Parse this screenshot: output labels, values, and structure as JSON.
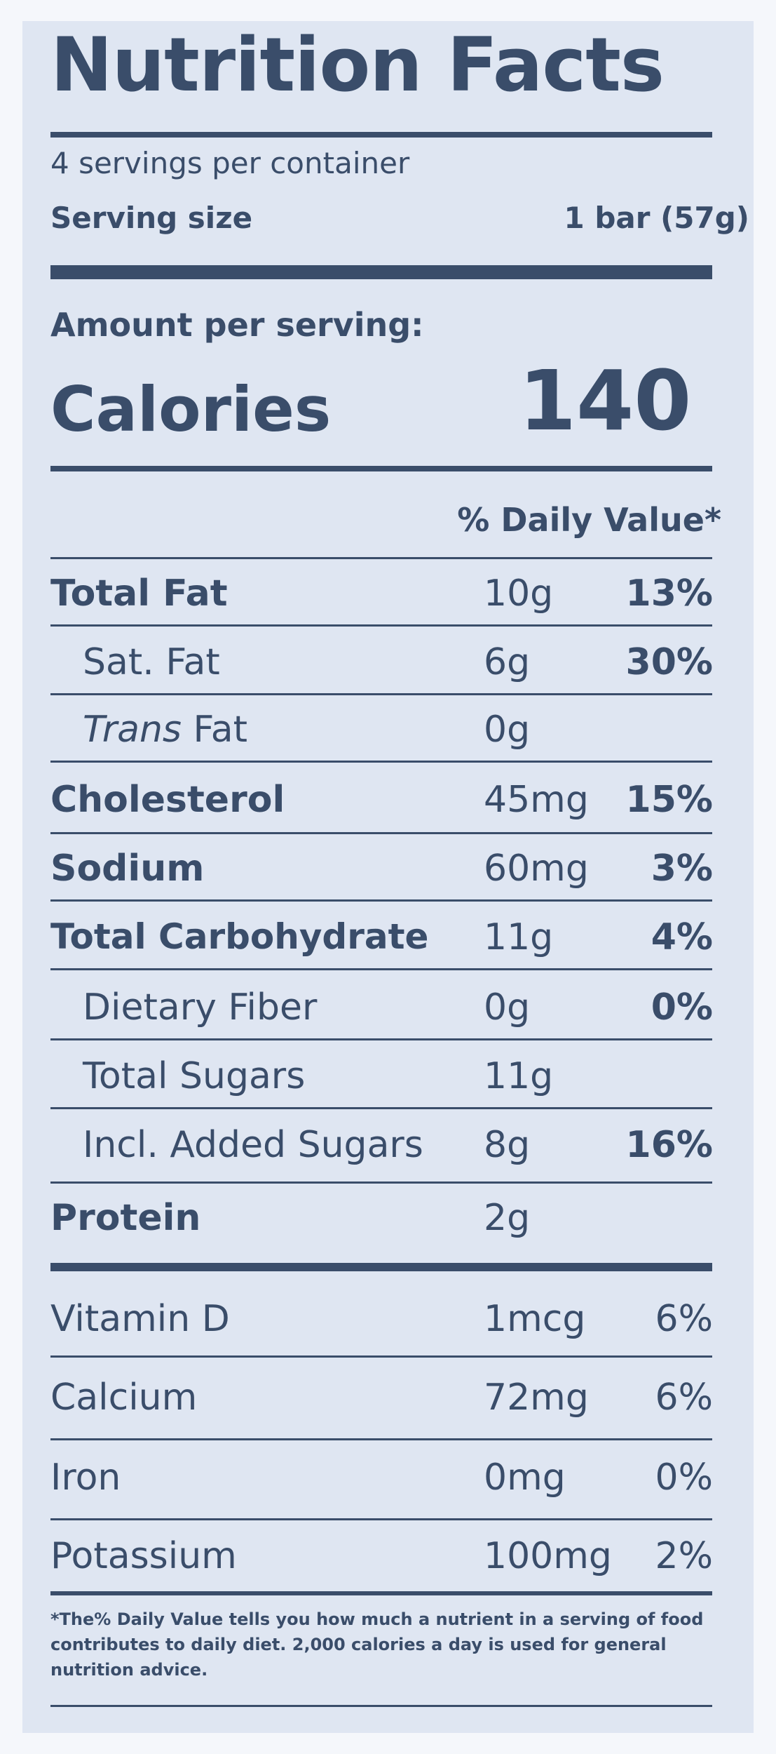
{
  "title": "Nutrition Facts",
  "servings_per_container": "4 servings per container",
  "serving_size_label": "Serving size",
  "serving_size_value": "1 bar (57g)",
  "amount_per_serving": "Amount per serving:",
  "calories_label": "Calories",
  "calories_value": "140",
  "daily_value_header": "% Daily Value*",
  "nutrients": [
    {
      "label": "Total Fat",
      "amount": "10g",
      "dv": "13%"
    },
    {
      "label": "Sat. Fat",
      "amount": "6g",
      "dv": "30%"
    },
    {
      "label_italic": "Trans",
      "label_rest": " Fat",
      "amount": "0g",
      "dv": ""
    },
    {
      "label": "Cholesterol",
      "amount": "45mg",
      "dv": "15%"
    },
    {
      "label": "Sodium",
      "amount": "60mg",
      "dv": "3%"
    },
    {
      "label": "Total Carbohydrate",
      "amount": "11g",
      "dv": "4%"
    },
    {
      "label": "Dietary Fiber",
      "amount": "0g",
      "dv": "0%"
    },
    {
      "label": "Total Sugars",
      "amount": "11g",
      "dv": ""
    },
    {
      "label": "Incl. Added Sugars",
      "amount": "8g",
      "dv": "16%"
    },
    {
      "label": "Protein",
      "amount": "2g",
      "dv": ""
    }
  ],
  "vitamins": [
    {
      "label": "Vitamin D",
      "amount": "1mcg",
      "dv": "6%"
    },
    {
      "label": "Calcium",
      "amount": "72mg",
      "dv": "6%"
    },
    {
      "label": "Iron",
      "amount": "0mg",
      "dv": "0%"
    },
    {
      "label": "Potassium",
      "amount": "100mg",
      "dv": "2%"
    }
  ],
  "footnote": "*The% Daily Value tells you how much a nutrient in a serving of food contributes to daily diet. 2,000 calories a day is used for general nutrition advice.",
  "colors": {
    "text": "#3a4d6a",
    "panel": "#dfe6f2",
    "background": "#f5f7fb"
  }
}
